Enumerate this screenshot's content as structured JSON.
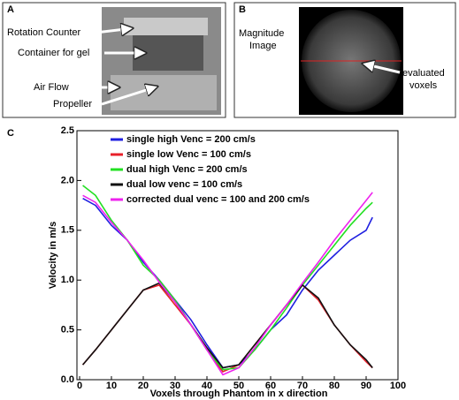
{
  "panels": {
    "a": {
      "label": "A",
      "callouts": [
        "Rotation Counter",
        "Container  for gel",
        "Air Flow",
        "Propeller"
      ]
    },
    "b": {
      "label": "B",
      "magnitude_image": [
        "Magnitude",
        "Image"
      ],
      "evaluated_voxels": [
        "evaluated",
        "voxels"
      ]
    },
    "c": {
      "label": "C"
    }
  },
  "chart_data": {
    "type": "line",
    "x_label": "Voxels through Phantom in x direction",
    "y_label": "Velocity in m/s",
    "x": [
      1,
      5,
      10,
      15,
      20,
      25,
      30,
      35,
      40,
      45,
      50,
      55,
      60,
      65,
      70,
      75,
      80,
      85,
      90,
      92
    ],
    "series": [
      {
        "name": "single high Venc = 200 cm/s",
        "color": "#1f1fe0",
        "values": [
          1.82,
          1.75,
          1.55,
          1.4,
          1.18,
          1.0,
          0.8,
          0.6,
          0.35,
          0.12,
          0.15,
          0.3,
          0.5,
          0.65,
          0.9,
          1.1,
          1.25,
          1.4,
          1.5,
          1.63
        ]
      },
      {
        "name": "single low Venc = 100 cm/s",
        "color": "#e8202a",
        "values": [
          0.15,
          0.3,
          0.5,
          0.7,
          0.9,
          0.95,
          0.75,
          0.55,
          0.3,
          0.08,
          0.15,
          0.35,
          0.55,
          0.75,
          0.95,
          0.8,
          0.55,
          0.35,
          0.18,
          0.12
        ]
      },
      {
        "name": "dual high Venc = 200 cm/s",
        "color": "#22e022",
        "values": [
          1.95,
          1.85,
          1.6,
          1.4,
          1.15,
          1.0,
          0.8,
          0.55,
          0.3,
          0.1,
          0.12,
          0.3,
          0.5,
          0.72,
          0.95,
          1.15,
          1.35,
          1.55,
          1.72,
          1.78
        ]
      },
      {
        "name": "dual low venc = 100 cm/s",
        "color": "#111111",
        "values": [
          0.15,
          0.3,
          0.5,
          0.7,
          0.9,
          0.97,
          0.78,
          0.55,
          0.32,
          0.12,
          0.15,
          0.35,
          0.55,
          0.75,
          0.95,
          0.82,
          0.55,
          0.35,
          0.2,
          0.12
        ]
      },
      {
        "name": "corrected dual venc = 100 and 200 cm/s",
        "color": "#ee22ee",
        "values": [
          1.85,
          1.78,
          1.58,
          1.4,
          1.2,
          0.98,
          0.78,
          0.55,
          0.3,
          0.05,
          0.12,
          0.32,
          0.55,
          0.75,
          0.97,
          1.18,
          1.4,
          1.6,
          1.8,
          1.88
        ]
      }
    ],
    "xlim": [
      0,
      100
    ],
    "xticks": [
      0,
      10,
      20,
      30,
      40,
      50,
      60,
      70,
      80,
      90,
      100
    ],
    "ylim": [
      0,
      2.5
    ],
    "yticks": [
      {
        "value": 0,
        "label": "0.0"
      },
      0.5,
      {
        "value": 1,
        "label": "1.0"
      },
      1.5,
      {
        "value": 2,
        "label": "2.0"
      },
      2.5
    ],
    "legend": "upper left"
  }
}
